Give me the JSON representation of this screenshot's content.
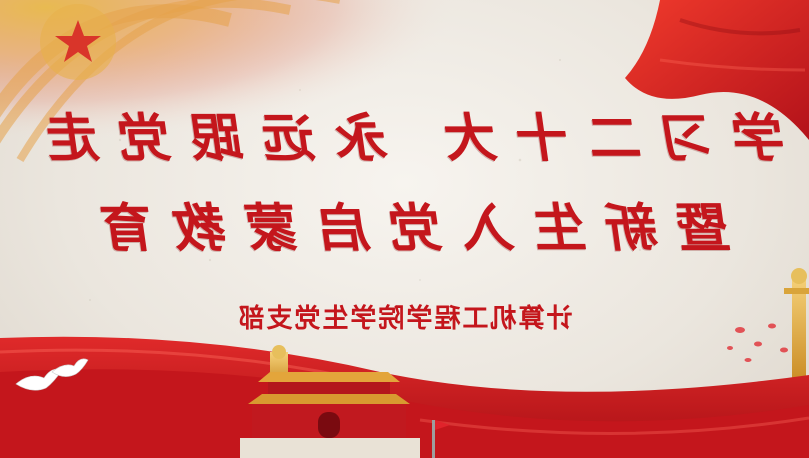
{
  "slide": {
    "title_line_1": "学习二十大 永远跟党走",
    "title_line_2": "暨新生入党启蒙教育",
    "subtitle": "计算机工程学院学生党支部"
  },
  "colors": {
    "accent_red": "#c4161c",
    "gold": "#e8b84a",
    "paper": "#f2eee8"
  },
  "icons": [
    "party-emblem-icon",
    "red-flag-icon",
    "white-doves-icon",
    "tiananmen-gate-icon",
    "huabiao-pillar-icon"
  ]
}
